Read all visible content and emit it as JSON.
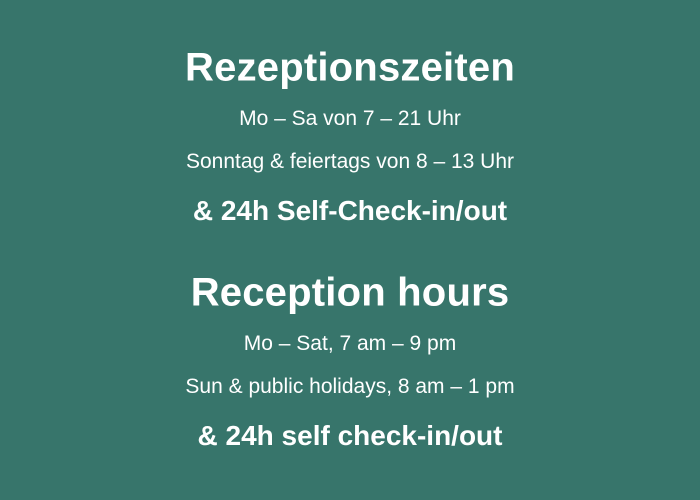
{
  "de": {
    "title": "Rezeptionszeiten",
    "weekdays": "Mo – Sa von 7 – 21 Uhr",
    "sundays": "Sonntag & feiertags von 8 – 13 Uhr",
    "self_checkin": "& 24h Self-Check-in/out"
  },
  "en": {
    "title": "Reception hours",
    "weekdays": "Mo – Sat, 7 am – 9 pm",
    "sundays": "Sun & public holidays, 8 am – 1 pm",
    "self_checkin": "& 24h self check-in/out"
  },
  "colors": {
    "background": "#37756b",
    "text": "#ffffff"
  }
}
